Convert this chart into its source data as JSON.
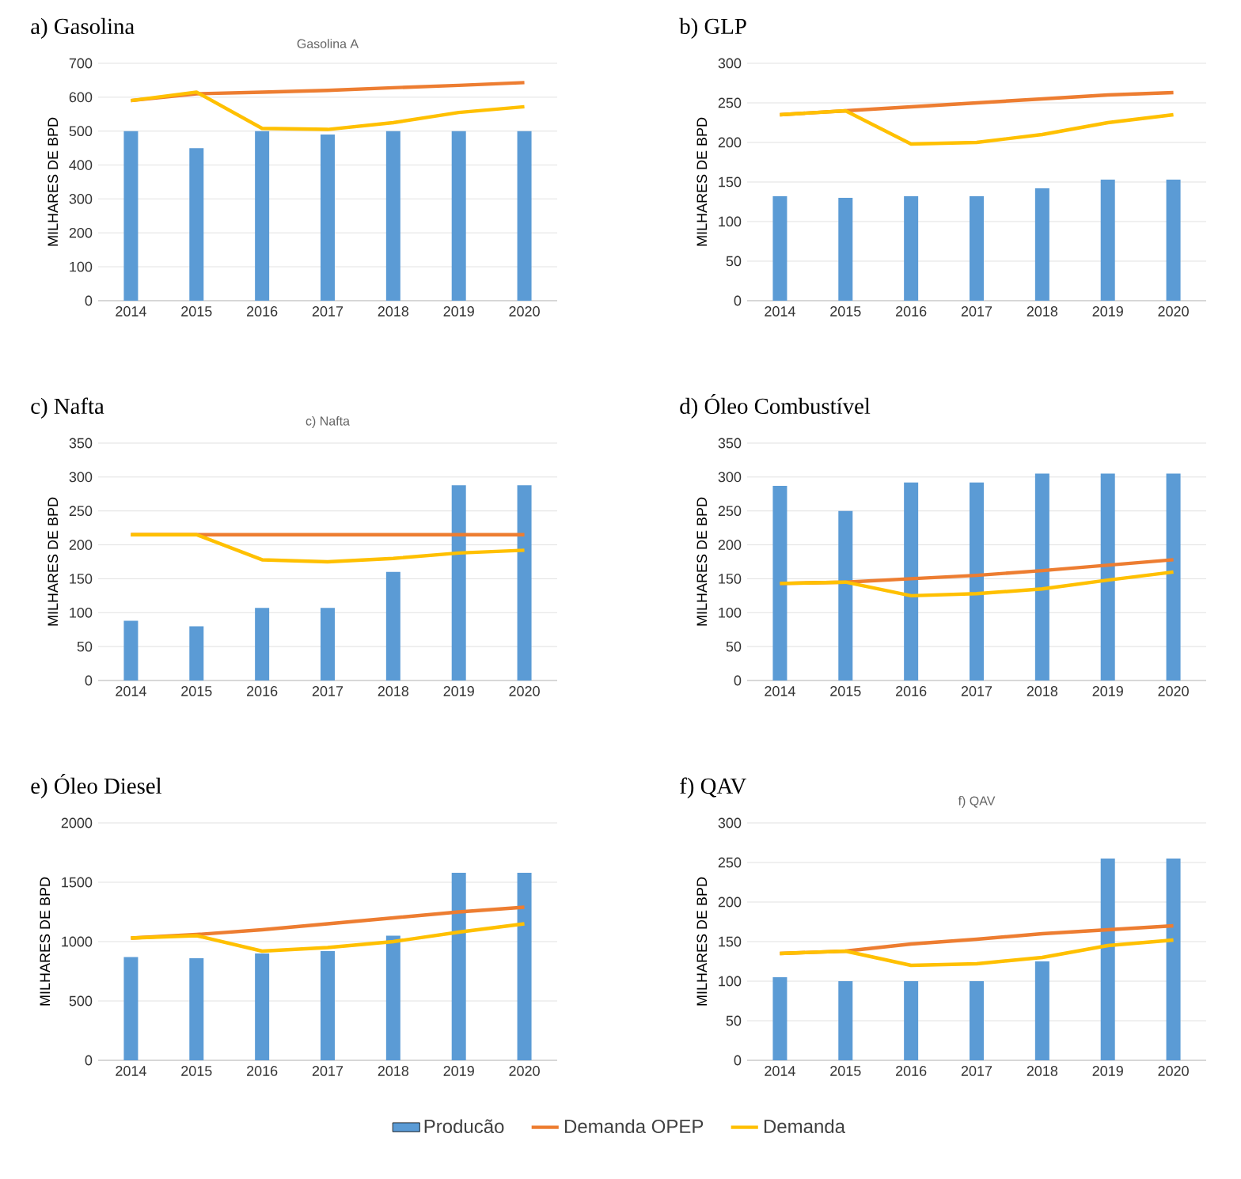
{
  "chart_data": [
    {
      "type": "bar",
      "title": "a) Gasolina",
      "subtitle": "Gasolina A",
      "ylabel": "MILHARES DE BPD",
      "categories": [
        "2014",
        "2015",
        "2016",
        "2017",
        "2018",
        "2019",
        "2020"
      ],
      "ylim": [
        0,
        700
      ],
      "yticks": [
        0,
        100,
        200,
        300,
        400,
        500,
        600,
        700
      ],
      "grid": "y",
      "series": [
        {
          "color": "#5b9bd5",
          "values": [
            500,
            450,
            500,
            490,
            500,
            500,
            500
          ]
        },
        {
          "type": "line",
          "color": "#ed7d31",
          "values": [
            590,
            610,
            615,
            620,
            628,
            635,
            643
          ]
        },
        {
          "type": "line",
          "color": "#ffc000",
          "values": [
            590,
            615,
            508,
            505,
            525,
            555,
            572
          ]
        }
      ]
    },
    {
      "type": "bar",
      "title": "b) GLP",
      "ylabel": "MILHARES DE BPD",
      "categories": [
        "2014",
        "2015",
        "2016",
        "2017",
        "2018",
        "2019",
        "2020"
      ],
      "ylim": [
        0,
        300
      ],
      "yticks": [
        0,
        50,
        100,
        150,
        200,
        250,
        300
      ],
      "grid": "y",
      "series": [
        {
          "color": "#5b9bd5",
          "values": [
            132,
            130,
            132,
            132,
            142,
            153,
            153
          ]
        },
        {
          "type": "line",
          "color": "#ed7d31",
          "values": [
            235,
            240,
            245,
            250,
            255,
            260,
            263
          ]
        },
        {
          "type": "line",
          "color": "#ffc000",
          "values": [
            235,
            240,
            198,
            200,
            210,
            225,
            235
          ]
        }
      ]
    },
    {
      "type": "bar",
      "title": "c) Nafta",
      "subtitle": "c) Nafta",
      "ylabel": "MILHARES DE BPD",
      "categories": [
        "2014",
        "2015",
        "2016",
        "2017",
        "2018",
        "2019",
        "2020"
      ],
      "ylim": [
        0,
        350
      ],
      "yticks": [
        0,
        50,
        100,
        150,
        200,
        250,
        300,
        350
      ],
      "grid": "y",
      "series": [
        {
          "color": "#5b9bd5",
          "values": [
            88,
            80,
            107,
            107,
            160,
            288,
            288
          ]
        },
        {
          "type": "line",
          "color": "#ed7d31",
          "values": [
            215,
            215,
            215,
            215,
            215,
            215,
            215
          ]
        },
        {
          "type": "line",
          "color": "#ffc000",
          "values": [
            215,
            215,
            178,
            175,
            180,
            188,
            192
          ]
        }
      ]
    },
    {
      "type": "bar",
      "title": "d) Óleo Combustível",
      "ylabel": "MILHARES DE BPD",
      "categories": [
        "2014",
        "2015",
        "2016",
        "2017",
        "2018",
        "2019",
        "2020"
      ],
      "ylim": [
        0,
        350
      ],
      "yticks": [
        0,
        50,
        100,
        150,
        200,
        250,
        300,
        350
      ],
      "grid": "y",
      "series": [
        {
          "color": "#5b9bd5",
          "values": [
            287,
            250,
            292,
            292,
            305,
            305,
            305
          ]
        },
        {
          "type": "line",
          "color": "#ed7d31",
          "values": [
            143,
            145,
            150,
            155,
            162,
            170,
            178
          ]
        },
        {
          "type": "line",
          "color": "#ffc000",
          "values": [
            143,
            145,
            125,
            128,
            135,
            148,
            160
          ]
        }
      ]
    },
    {
      "type": "bar",
      "title": "e) Óleo Diesel",
      "ylabel": "MILHARES DE BPD",
      "categories": [
        "2014",
        "2015",
        "2016",
        "2017",
        "2018",
        "2019",
        "2020"
      ],
      "ylim": [
        0,
        2000
      ],
      "yticks": [
        0,
        500,
        1000,
        1500,
        2000
      ],
      "grid": "y",
      "series": [
        {
          "color": "#5b9bd5",
          "values": [
            870,
            860,
            900,
            920,
            1050,
            1580,
            1580
          ]
        },
        {
          "type": "line",
          "color": "#ed7d31",
          "values": [
            1030,
            1060,
            1100,
            1150,
            1200,
            1250,
            1290
          ]
        },
        {
          "type": "line",
          "color": "#ffc000",
          "values": [
            1030,
            1050,
            920,
            950,
            1000,
            1080,
            1150
          ]
        }
      ]
    },
    {
      "type": "bar",
      "title": "f) QAV",
      "subtitle": "f) QAV",
      "ylabel": "MILHARES DE BPD",
      "categories": [
        "2014",
        "2015",
        "2016",
        "2017",
        "2018",
        "2019",
        "2020"
      ],
      "ylim": [
        0,
        300
      ],
      "yticks": [
        0,
        50,
        100,
        150,
        200,
        250,
        300
      ],
      "grid": "y",
      "legend": "bottom",
      "series": [
        {
          "name": "Producão",
          "color": "#5b9bd5",
          "values": [
            105,
            100,
            100,
            100,
            125,
            255,
            255
          ]
        },
        {
          "name": "Demanda OPEP",
          "type": "line",
          "color": "#ed7d31",
          "values": [
            135,
            138,
            147,
            153,
            160,
            165,
            170
          ]
        },
        {
          "name": "Demanda",
          "type": "line",
          "color": "#ffc000",
          "values": [
            135,
            138,
            120,
            122,
            130,
            145,
            152
          ]
        }
      ]
    }
  ]
}
